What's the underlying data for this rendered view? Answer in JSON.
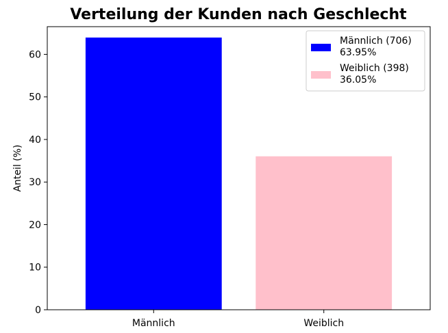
{
  "chart_data": {
    "type": "bar",
    "title": "Verteilung der Kunden nach Geschlecht",
    "xlabel": "",
    "ylabel": "Anteil (%)",
    "categories": [
      "Männlich",
      "Weiblich"
    ],
    "values": [
      63.95,
      36.05
    ],
    "colors": [
      "#0000ff",
      "#ffc0cb"
    ],
    "ylim": [
      0,
      66.5
    ],
    "yticks": [
      0,
      10,
      20,
      30,
      40,
      50,
      60
    ],
    "grid": false,
    "legend": {
      "placement": "top-right",
      "entries": [
        {
          "line1": "Männlich (706)",
          "line2": "63.95%",
          "color": "#0000ff"
        },
        {
          "line1": "Weiblich (398)",
          "line2": "36.05%",
          "color": "#ffc0cb"
        }
      ]
    }
  }
}
